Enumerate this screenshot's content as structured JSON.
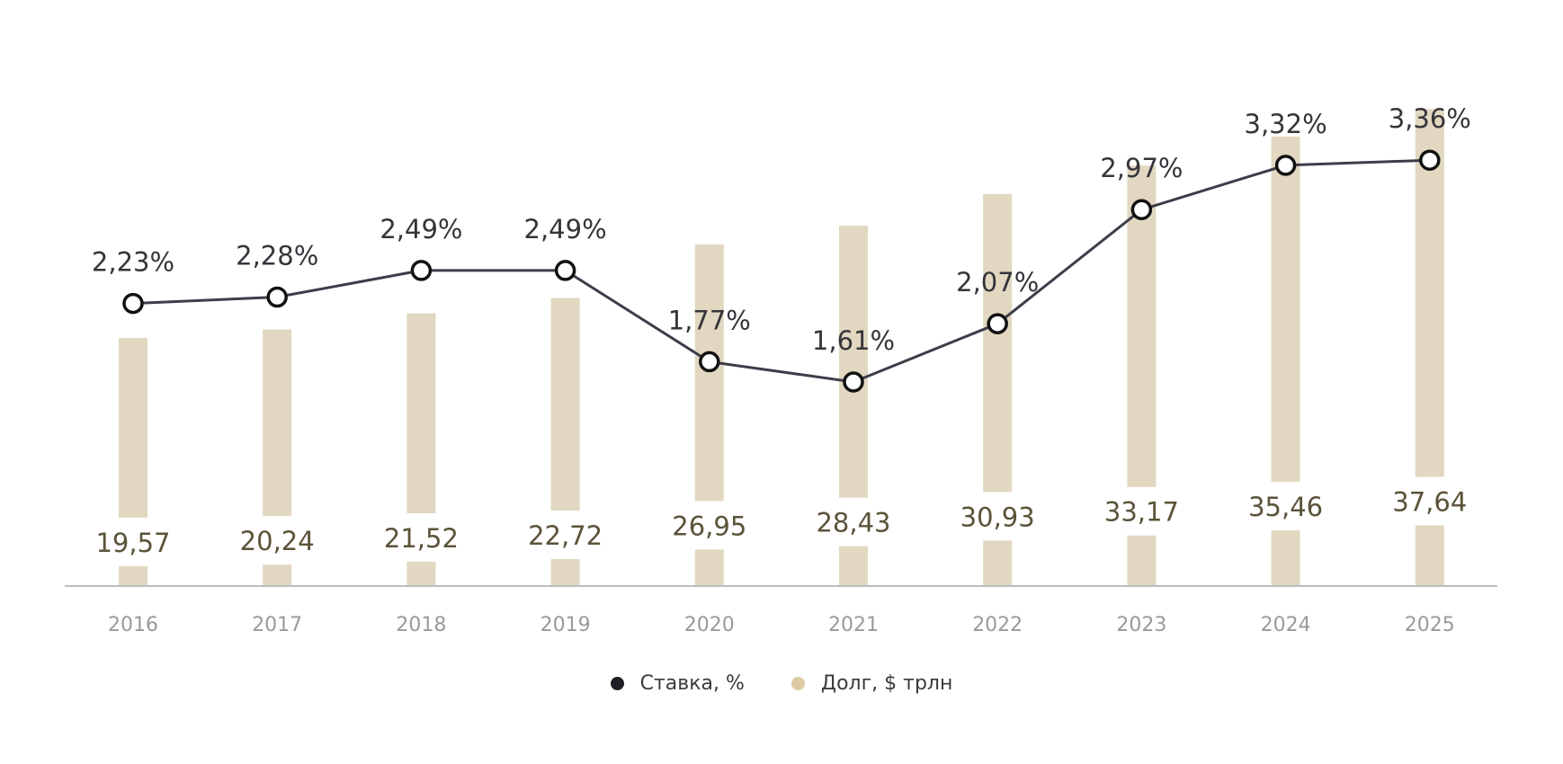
{
  "chart_data": {
    "type": "bar+line",
    "title": "",
    "categories": [
      "2016",
      "2017",
      "2018",
      "2019",
      "2020",
      "2021",
      "2022",
      "2023",
      "2024",
      "2025"
    ],
    "series": [
      {
        "name": "Ставка, %",
        "type": "line",
        "color": "#3d3d4a",
        "values": [
          2.23,
          2.28,
          2.49,
          2.49,
          1.77,
          1.61,
          2.07,
          2.97,
          3.32,
          3.36
        ],
        "labels": [
          "2,23%",
          "2,28%",
          "2,49%",
          "2,49%",
          "1,77%",
          "1,61%",
          "2,07%",
          "2,97%",
          "3,32%",
          "3,36%"
        ]
      },
      {
        "name": "Долг, $ трлн",
        "type": "bar",
        "color": "#e2d7c0",
        "values": [
          19.57,
          20.24,
          21.52,
          22.72,
          26.95,
          28.43,
          30.93,
          33.17,
          35.46,
          37.64
        ],
        "labels": [
          "19,57",
          "20,24",
          "21,52",
          "22,72",
          "26,95",
          "28,43",
          "30,93",
          "33,17",
          "35,46",
          "37,64"
        ]
      }
    ],
    "xlabel": "",
    "ylabel": "",
    "grid": false,
    "legend_position": "bottom-center",
    "legend": [
      {
        "label": "Ставка, %",
        "color": "#1e1f26"
      },
      {
        "label": "Долг, $ трлн",
        "color": "#dccba3"
      }
    ]
  }
}
